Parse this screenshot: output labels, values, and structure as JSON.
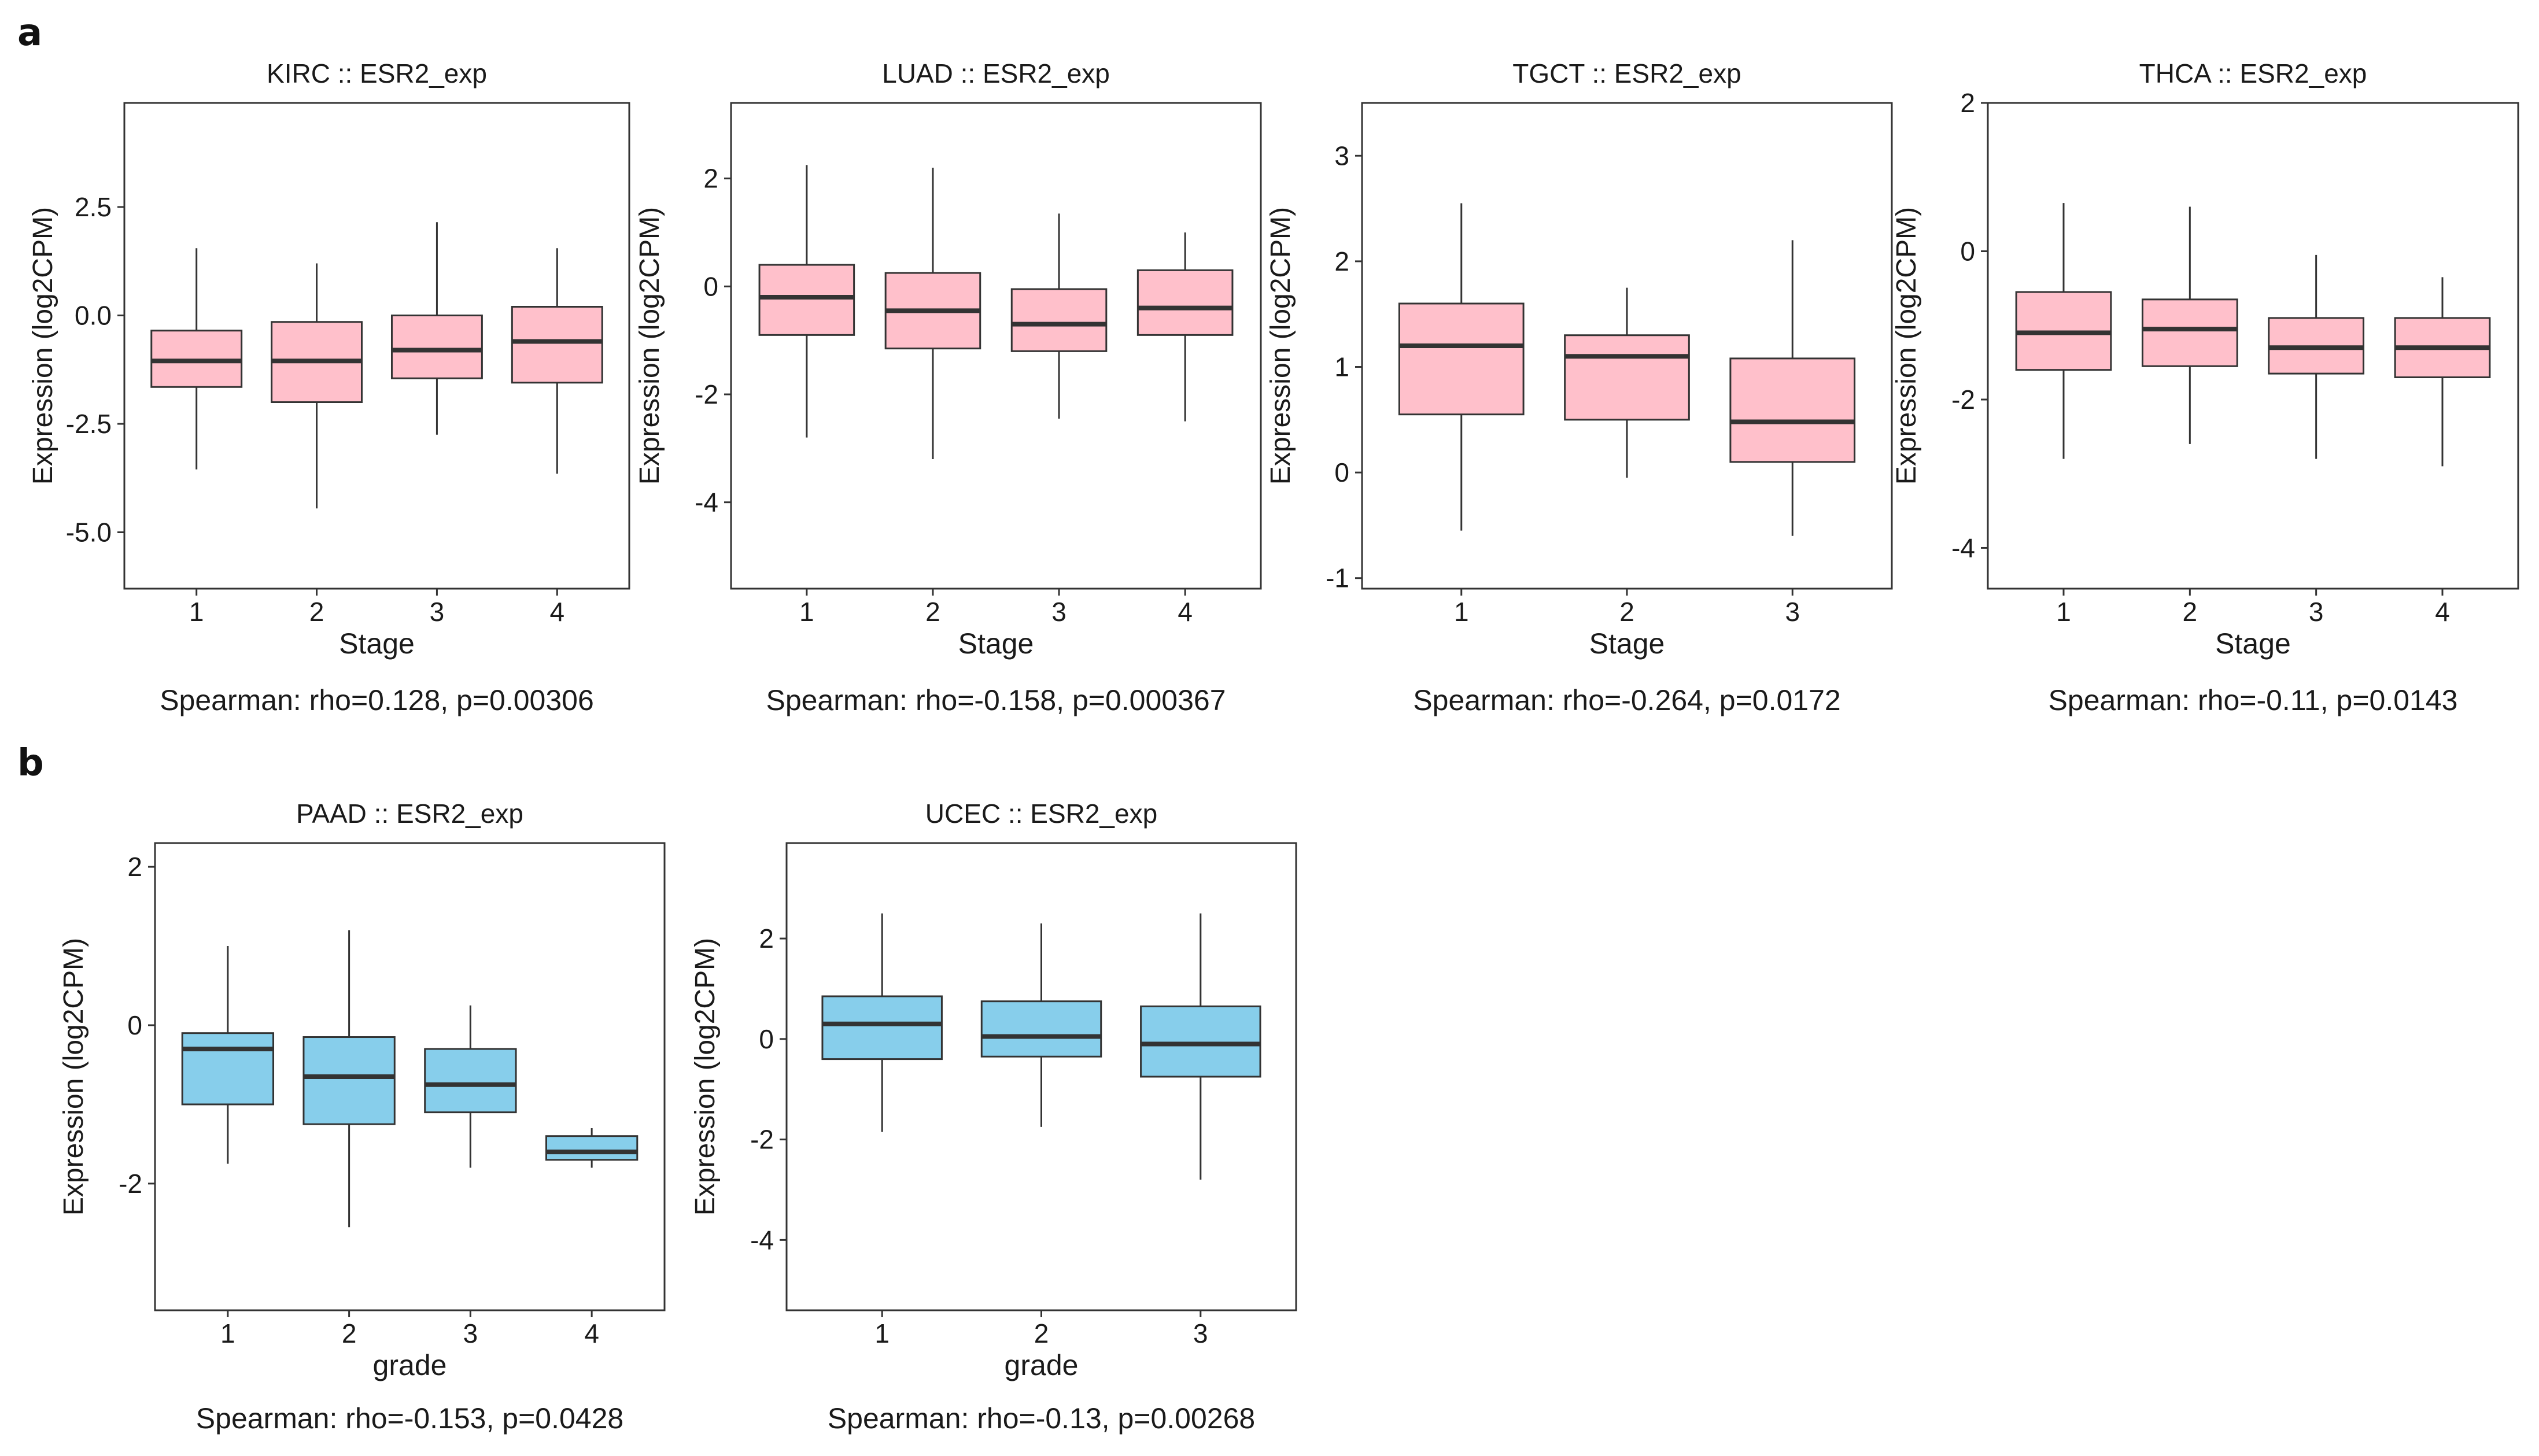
{
  "panel_labels": {
    "a": "a",
    "b": "b"
  },
  "chart_data": [
    {
      "type": "box",
      "panel": "a",
      "title": "KIRC  ::  ESR2_exp",
      "xlabel": "Stage",
      "ylabel": "Expression (log2CPM)",
      "categories": [
        "1",
        "2",
        "3",
        "4"
      ],
      "ylim": [
        -6.3,
        4.9
      ],
      "yticks": [
        -5.0,
        -2.5,
        0.0,
        2.5
      ],
      "ytick_labels": [
        "-5.0",
        "-2.5",
        "0.0",
        "2.5"
      ],
      "box_color": "#ffc0cb",
      "boxes": [
        {
          "low": -3.55,
          "q1": -1.65,
          "median": -1.05,
          "q3": -0.35,
          "high": 1.55
        },
        {
          "low": -4.45,
          "q1": -2.0,
          "median": -1.05,
          "q3": -0.15,
          "high": 1.2
        },
        {
          "low": -2.75,
          "q1": -1.45,
          "median": -0.8,
          "q3": 0.0,
          "high": 2.15
        },
        {
          "low": -3.65,
          "q1": -1.55,
          "median": -0.6,
          "q3": 0.2,
          "high": 1.55
        }
      ],
      "stat_text": "Spearman: rho=0.128, p=0.00306"
    },
    {
      "type": "box",
      "panel": "a",
      "title": "LUAD  ::  ESR2_exp",
      "xlabel": "Stage",
      "ylabel": "Expression (log2CPM)",
      "categories": [
        "1",
        "2",
        "3",
        "4"
      ],
      "ylim": [
        -5.6,
        3.4
      ],
      "yticks": [
        -4,
        -2,
        0,
        2
      ],
      "ytick_labels": [
        "-4",
        "-2",
        "0",
        "2"
      ],
      "box_color": "#ffc0cb",
      "boxes": [
        {
          "low": -2.8,
          "q1": -0.9,
          "median": -0.2,
          "q3": 0.4,
          "high": 2.25
        },
        {
          "low": -3.2,
          "q1": -1.15,
          "median": -0.45,
          "q3": 0.25,
          "high": 2.2
        },
        {
          "low": -2.45,
          "q1": -1.2,
          "median": -0.7,
          "q3": -0.05,
          "high": 1.35
        },
        {
          "low": -2.5,
          "q1": -0.9,
          "median": -0.4,
          "q3": 0.3,
          "high": 1.0
        }
      ],
      "stat_text": "Spearman: rho=-0.158, p=0.000367"
    },
    {
      "type": "box",
      "panel": "a",
      "title": "TGCT  ::  ESR2_exp",
      "xlabel": "Stage",
      "ylabel": "Expression (log2CPM)",
      "categories": [
        "1",
        "2",
        "3"
      ],
      "ylim": [
        -1.1,
        3.5
      ],
      "yticks": [
        -1,
        0,
        1,
        2,
        3
      ],
      "ytick_labels": [
        "-1",
        "0",
        "1",
        "2",
        "3"
      ],
      "box_color": "#ffc0cb",
      "boxes": [
        {
          "low": -0.55,
          "q1": 0.55,
          "median": 1.2,
          "q3": 1.6,
          "high": 2.55
        },
        {
          "low": -0.05,
          "q1": 0.5,
          "median": 1.1,
          "q3": 1.3,
          "high": 1.75
        },
        {
          "low": -0.6,
          "q1": 0.1,
          "median": 0.48,
          "q3": 1.08,
          "high": 2.2
        }
      ],
      "stat_text": "Spearman: rho=-0.264, p=0.0172"
    },
    {
      "type": "box",
      "panel": "a",
      "title": "THCA  ::  ESR2_exp",
      "xlabel": "Stage",
      "ylabel": "Expression (log2CPM)",
      "categories": [
        "1",
        "2",
        "3",
        "4"
      ],
      "ylim": [
        -4.55,
        2.0
      ],
      "yticks": [
        -4,
        -2,
        0,
        2
      ],
      "ytick_labels": [
        "-4",
        "-2",
        "0",
        "2"
      ],
      "box_color": "#ffc0cb",
      "boxes": [
        {
          "low": -2.8,
          "q1": -1.6,
          "median": -1.1,
          "q3": -0.55,
          "high": 0.65
        },
        {
          "low": -2.6,
          "q1": -1.55,
          "median": -1.05,
          "q3": -0.65,
          "high": 0.6
        },
        {
          "low": -2.8,
          "q1": -1.65,
          "median": -1.3,
          "q3": -0.9,
          "high": -0.05
        },
        {
          "low": -2.9,
          "q1": -1.7,
          "median": -1.3,
          "q3": -0.9,
          "high": -0.35
        }
      ],
      "stat_text": "Spearman: rho=-0.11, p=0.0143"
    },
    {
      "type": "box",
      "panel": "b",
      "title": "PAAD  ::  ESR2_exp",
      "xlabel": "grade",
      "ylabel": "Expression (log2CPM)",
      "categories": [
        "1",
        "2",
        "3",
        "4"
      ],
      "ylim": [
        -3.6,
        2.3
      ],
      "yticks": [
        -2,
        0,
        2
      ],
      "ytick_labels": [
        "-2",
        "0",
        "2"
      ],
      "box_color": "#87ceeb",
      "boxes": [
        {
          "low": -1.75,
          "q1": -1.0,
          "median": -0.3,
          "q3": -0.1,
          "high": 1.0
        },
        {
          "low": -2.55,
          "q1": -1.25,
          "median": -0.65,
          "q3": -0.15,
          "high": 1.2
        },
        {
          "low": -1.8,
          "q1": -1.1,
          "median": -0.75,
          "q3": -0.3,
          "high": 0.25
        },
        {
          "low": -1.8,
          "q1": -1.7,
          "median": -1.6,
          "q3": -1.4,
          "high": -1.3
        }
      ],
      "stat_text": "Spearman: rho=-0.153, p=0.0428"
    },
    {
      "type": "box",
      "panel": "b",
      "title": "UCEC  ::  ESR2_exp",
      "xlabel": "grade",
      "ylabel": "Expression (log2CPM)",
      "categories": [
        "1",
        "2",
        "3"
      ],
      "ylim": [
        -5.4,
        3.9
      ],
      "yticks": [
        -4,
        -2,
        0,
        2
      ],
      "ytick_labels": [
        "-4",
        "-2",
        "0",
        "2"
      ],
      "box_color": "#87ceeb",
      "boxes": [
        {
          "low": -1.85,
          "q1": -0.4,
          "median": 0.3,
          "q3": 0.85,
          "high": 2.5
        },
        {
          "low": -1.75,
          "q1": -0.35,
          "median": 0.05,
          "q3": 0.75,
          "high": 2.3
        },
        {
          "low": -2.8,
          "q1": -0.75,
          "median": -0.1,
          "q3": 0.65,
          "high": 2.5
        }
      ],
      "stat_text": "Spearman: rho=-0.13, p=0.00268"
    }
  ]
}
